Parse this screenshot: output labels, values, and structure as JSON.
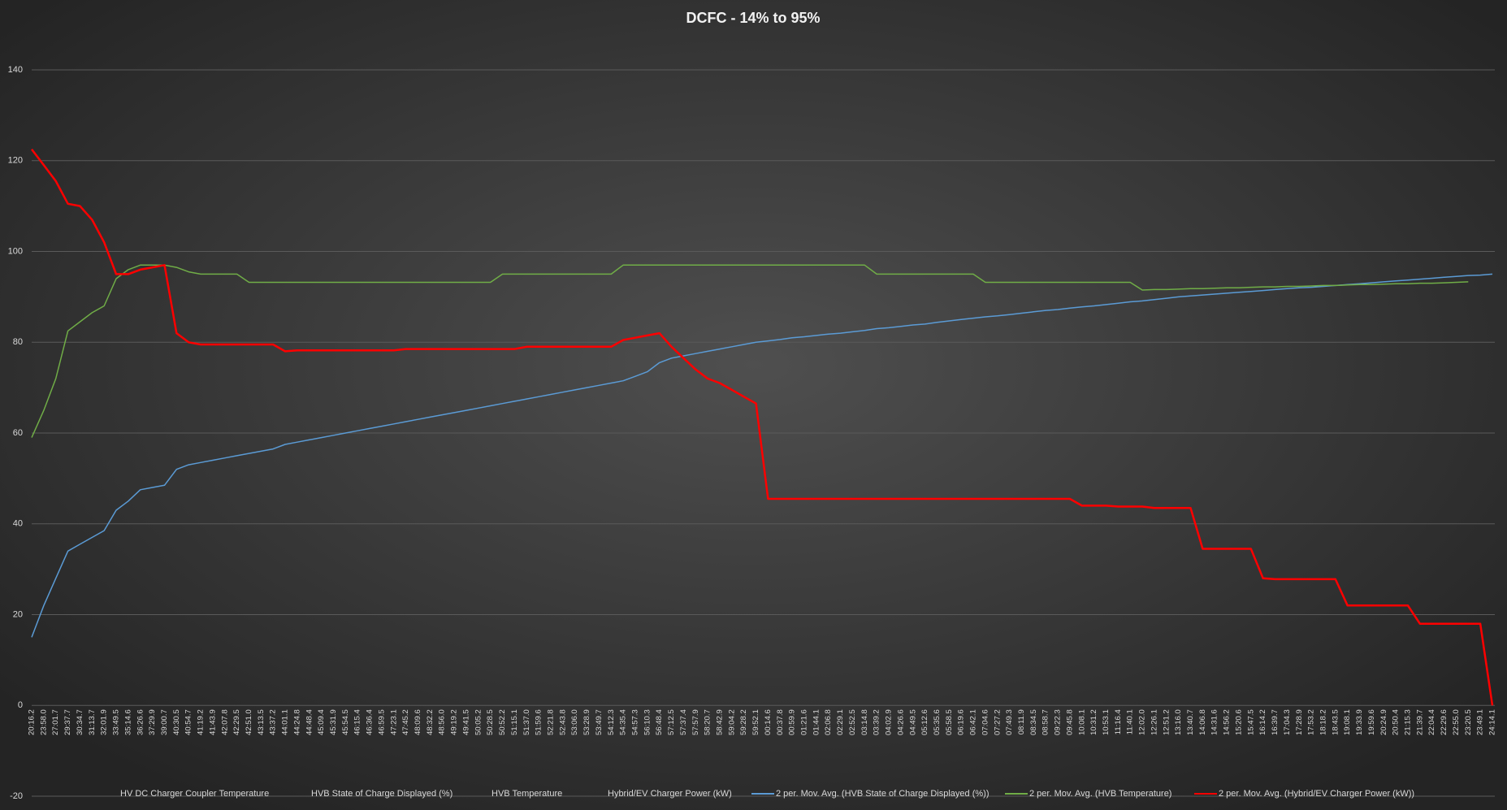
{
  "chart_data": {
    "type": "line",
    "title": "DCFC - 14% to 95%",
    "categories": [
      "20:16.2",
      "23:58.0",
      "27:01.7",
      "29:37.7",
      "30:34.7",
      "31:13.7",
      "32:01.9",
      "33:49.5",
      "35:14.6",
      "36:26.6",
      "37:29.9",
      "39:00.7",
      "40:30.5",
      "40:54.7",
      "41:19.2",
      "41:43.9",
      "42:07.8",
      "42:29.5",
      "42:51.0",
      "43:13.5",
      "43:37.2",
      "44:01.1",
      "44:24.8",
      "44:48.4",
      "45:09.4",
      "45:31.9",
      "45:54.5",
      "46:15.4",
      "46:36.4",
      "46:59.5",
      "47:23.1",
      "47:45.2",
      "48:09.6",
      "48:32.2",
      "48:56.0",
      "49:19.2",
      "49:41.5",
      "50:05.2",
      "50:28.5",
      "50:52.2",
      "51:15.1",
      "51:37.0",
      "51:59.6",
      "52:21.8",
      "52:43.8",
      "53:06.0",
      "53:28.9",
      "53:49.7",
      "54:12.3",
      "54:35.4",
      "54:57.3",
      "56:10.3",
      "56:48.4",
      "57:12.5",
      "57:37.4",
      "57:57.9",
      "58:20.7",
      "58:42.9",
      "59:04.2",
      "59:28.2",
      "59:52.1",
      "00:14.6",
      "00:37.8",
      "00:59.9",
      "01:21.6",
      "01:44.1",
      "02:06.8",
      "02:29.1",
      "02:52.5",
      "03:14.8",
      "03:39.2",
      "04:02.9",
      "04:26.6",
      "04:49.5",
      "05:12.6",
      "05:35.6",
      "05:58.5",
      "06:19.6",
      "06:42.1",
      "07:04.6",
      "07:27.2",
      "07:49.3",
      "08:11.9",
      "08:34.5",
      "08:58.7",
      "09:22.3",
      "09:45.8",
      "10:08.1",
      "10:31.2",
      "10:53.1",
      "11:16.4",
      "11:40.1",
      "12:02.0",
      "12:26.1",
      "12:51.2",
      "13:16.0",
      "13:40.7",
      "14:06.8",
      "14:31.6",
      "14:56.2",
      "15:20.6",
      "15:47.5",
      "16:14.2",
      "16:39.7",
      "17:04.3",
      "17:28.9",
      "17:53.2",
      "18:18.2",
      "18:43.5",
      "19:08.1",
      "19:33.9",
      "19:59.6",
      "20:24.9",
      "20:50.4",
      "21:15.3",
      "21:39.7",
      "22:04.4",
      "22:29.6",
      "22:55.0",
      "23:20.5",
      "23:49.1",
      "24:14.1"
    ],
    "series": [
      {
        "name": "HV DC Charger Coupler Temperature"
      },
      {
        "name": "HVB State of Charge Displayed (%)"
      },
      {
        "name": "HVB Temperature"
      },
      {
        "name": "Hybrid/EV Charger Power (kW)"
      },
      {
        "name": "2 per. Mov. Avg. (HVB State of Charge Displayed (%))",
        "color": "#5b9bd5",
        "width": 1.5,
        "values": [
          15,
          22,
          28,
          34,
          35.5,
          37,
          38.5,
          43,
          45,
          47.5,
          48,
          48.5,
          52,
          53,
          53.5,
          54,
          54.5,
          55,
          55.5,
          56,
          56.5,
          57.5,
          58,
          58.5,
          59,
          59.5,
          60,
          60.5,
          61,
          61.5,
          62,
          62.5,
          63,
          63.5,
          64,
          64.5,
          65,
          65.5,
          66,
          66.5,
          67,
          67.5,
          68,
          68.5,
          69,
          69.5,
          70,
          70.5,
          71,
          71.5,
          72.5,
          73.5,
          75.5,
          76.5,
          77,
          77.5,
          78,
          78.5,
          79,
          79.5,
          80,
          80.3,
          80.6,
          81,
          81.2,
          81.5,
          81.8,
          82,
          82.3,
          82.6,
          83,
          83.2,
          83.5,
          83.8,
          84,
          84.4,
          84.7,
          85,
          85.3,
          85.6,
          85.8,
          86.1,
          86.4,
          86.7,
          87,
          87.2,
          87.5,
          87.8,
          88,
          88.3,
          88.6,
          88.9,
          89.1,
          89.4,
          89.7,
          90,
          90.2,
          90.4,
          90.6,
          90.8,
          91,
          91.2,
          91.4,
          91.6,
          91.8,
          92,
          92.1,
          92.3,
          92.5,
          92.7,
          92.9,
          93.1,
          93.3,
          93.5,
          93.7,
          93.9,
          94.1,
          94.3,
          94.5,
          94.7,
          94.8,
          95
        ]
      },
      {
        "name": "2 per. Mov. Avg. (HVB Temperature)",
        "color": "#70ad47",
        "width": 1.5,
        "values": [
          59,
          65,
          72,
          82.5,
          84.5,
          86.5,
          88,
          94,
          96,
          97,
          97,
          97,
          96.5,
          95.5,
          95,
          95,
          95,
          95,
          93.2,
          93.2,
          93.2,
          93.2,
          93.2,
          93.2,
          93.2,
          93.2,
          93.2,
          93.2,
          93.2,
          93.2,
          93.2,
          93.2,
          93.2,
          93.2,
          93.2,
          93.2,
          93.2,
          93.2,
          93.2,
          95,
          95,
          95,
          95,
          95,
          95,
          95,
          95,
          95,
          95,
          97,
          97,
          97,
          97,
          97,
          97,
          97,
          97,
          97,
          97,
          97,
          97,
          97,
          97,
          97,
          97,
          97,
          97,
          97,
          97,
          97,
          95,
          95,
          95,
          95,
          95,
          95,
          95,
          95,
          95,
          93.2,
          93.2,
          93.2,
          93.2,
          93.2,
          93.2,
          93.2,
          93.2,
          93.2,
          93.2,
          93.2,
          93.2,
          93.2,
          91.5,
          91.6,
          91.6,
          91.7,
          91.8,
          91.8,
          91.9,
          92,
          92,
          92.1,
          92.2,
          92.2,
          92.3,
          92.3,
          92.4,
          92.5,
          92.5,
          92.6,
          92.7,
          92.7,
          92.8,
          92.9,
          92.9,
          93,
          93,
          93.1,
          93.2,
          93.3,
          null,
          null
        ]
      },
      {
        "name": "2 per. Mov. Avg. (Hybrid/EV Charger Power (kW))",
        "color": "#ff0000",
        "width": 2.5,
        "values": [
          122.5,
          119,
          115.5,
          110.5,
          110,
          107,
          102,
          95,
          95,
          96,
          96.5,
          97,
          82,
          80,
          79.5,
          79.5,
          79.5,
          79.5,
          79.5,
          79.5,
          79.5,
          78,
          78.2,
          78.2,
          78.2,
          78.2,
          78.2,
          78.2,
          78.2,
          78.2,
          78.2,
          78.5,
          78.5,
          78.5,
          78.5,
          78.5,
          78.5,
          78.5,
          78.5,
          78.5,
          78.5,
          79,
          79,
          79,
          79,
          79,
          79,
          79,
          79,
          80.5,
          81,
          81.5,
          82,
          79,
          76.5,
          74,
          72,
          71,
          69.5,
          68,
          66.5,
          45.5,
          45.5,
          45.5,
          45.5,
          45.5,
          45.5,
          45.5,
          45.5,
          45.5,
          45.5,
          45.5,
          45.5,
          45.5,
          45.5,
          45.5,
          45.5,
          45.5,
          45.5,
          45.5,
          45.5,
          45.5,
          45.5,
          45.5,
          45.5,
          45.5,
          45.5,
          44,
          44,
          44,
          43.8,
          43.8,
          43.8,
          43.5,
          43.5,
          43.5,
          43.5,
          34.5,
          34.5,
          34.5,
          34.5,
          34.5,
          28,
          27.8,
          27.8,
          27.8,
          27.8,
          27.8,
          27.8,
          22,
          22,
          22,
          22,
          22,
          22,
          18,
          18,
          18,
          18,
          18,
          18,
          0
        ]
      }
    ],
    "ylim": [
      -20,
      140
    ],
    "yticks": [
      -20,
      0,
      20,
      40,
      60,
      80,
      100,
      120,
      140
    ],
    "grid": true
  }
}
